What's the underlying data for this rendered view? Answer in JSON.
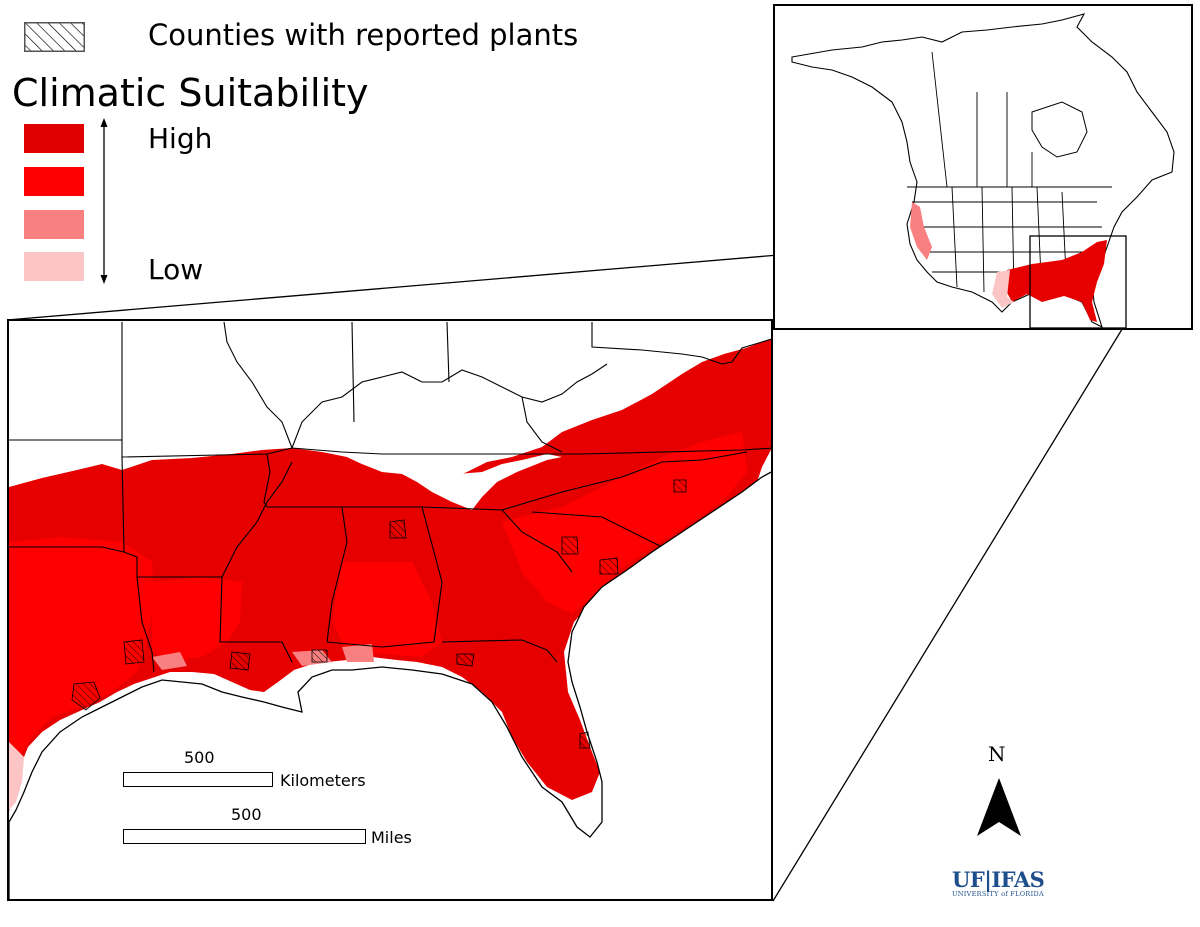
{
  "legend": {
    "hatch_label": "Counties with reported plants",
    "title": "Climatic Suitability",
    "high_label": "High",
    "low_label": "Low",
    "classes": [
      {
        "level": "highest",
        "color": "#e00000"
      },
      {
        "level": "high",
        "color": "#ff0000"
      },
      {
        "level": "moderate",
        "color": "#f88080"
      },
      {
        "level": "low",
        "color": "#fcc5c5"
      }
    ]
  },
  "scale_bar": {
    "km_value": "500",
    "km_unit": "Kilometers",
    "mi_value": "500",
    "mi_unit": "Miles"
  },
  "north_arrow": {
    "label": "N",
    "icon": "north-arrow-icon"
  },
  "logo": {
    "main": "UF|IFAS",
    "sub": "UNIVERSITY of FLORIDA"
  },
  "colors": {
    "dark_red": "#e00000",
    "red": "#ff0000",
    "pink": "#f88080",
    "light_pink": "#fcc5c5",
    "logo_blue": "#1f4e8c"
  }
}
